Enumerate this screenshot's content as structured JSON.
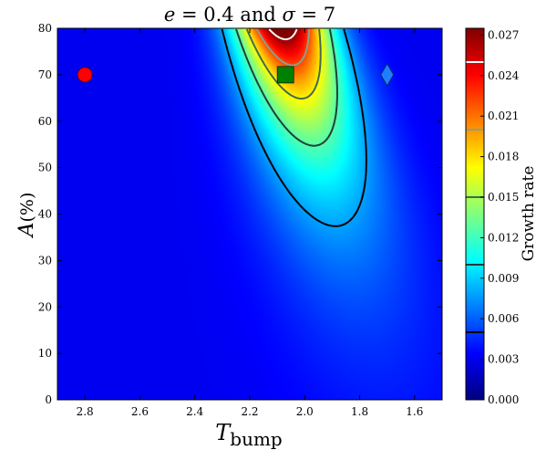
{
  "chart_data": {
    "type": "heatmap",
    "title": "e = 0.4 and σ = 7",
    "title_parts": {
      "e_sym": "e",
      "eq1": " = 0.4 and ",
      "sigma_sym": "σ",
      "eq2": " = 7"
    },
    "xlabel": {
      "main": "T",
      "sub": "bump"
    },
    "ylabel": {
      "main": "A",
      "unit": "(%)"
    },
    "x_axis": {
      "range": [
        2.9,
        1.5
      ],
      "reversed": true,
      "ticks": [
        "2.8",
        "2.6",
        "2.4",
        "2.2",
        "2.0",
        "1.8",
        "1.6"
      ],
      "tick_values": [
        2.8,
        2.6,
        2.4,
        2.2,
        2.0,
        1.8,
        1.6
      ]
    },
    "y_axis": {
      "range": [
        0,
        80
      ],
      "ticks": [
        "0",
        "10",
        "20",
        "30",
        "40",
        "50",
        "60",
        "70",
        "80"
      ],
      "tick_values": [
        0,
        10,
        20,
        30,
        40,
        50,
        60,
        70,
        80
      ]
    },
    "colorbar": {
      "label": "Growth rate",
      "range": [
        0,
        0.0275
      ],
      "ticks": [
        "0.000",
        "0.003",
        "0.006",
        "0.009",
        "0.012",
        "0.015",
        "0.018",
        "0.021",
        "0.024",
        "0.027"
      ],
      "tick_values": [
        0,
        0.003,
        0.006,
        0.009,
        0.012,
        0.015,
        0.018,
        0.021,
        0.024,
        0.027
      ],
      "contour_levels": [
        0.005,
        0.01,
        0.015,
        0.02,
        0.025
      ],
      "contour_colors": [
        "#000000",
        "#1f3d3d",
        "#3f6a4f",
        "#8a9f8a",
        "#ffffff"
      ],
      "colormap": "jet"
    },
    "peak": {
      "x": 2.08,
      "y": 80,
      "value": 0.0275
    },
    "markers": [
      {
        "shape": "circle",
        "x": 2.8,
        "y": 70,
        "color": "#ff0000"
      },
      {
        "shape": "square",
        "x": 2.07,
        "y": 70,
        "color": "#008000"
      },
      {
        "shape": "diamond",
        "x": 1.7,
        "y": 70,
        "color": "#1e7fff"
      }
    ],
    "grid": false
  }
}
